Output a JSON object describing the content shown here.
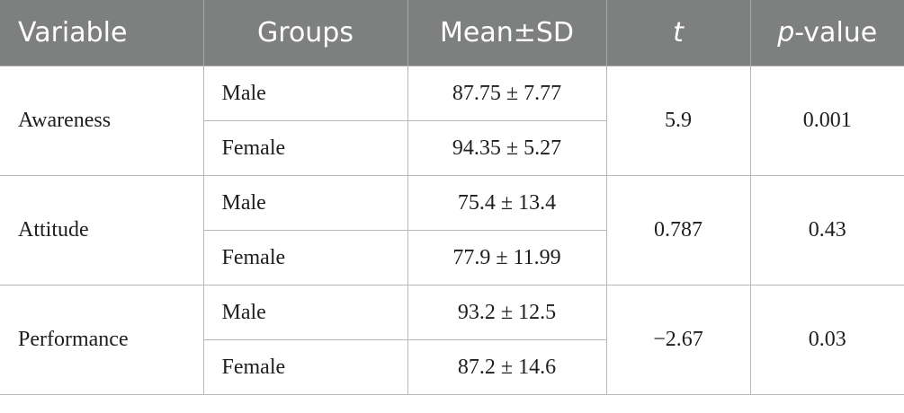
{
  "table": {
    "headers": {
      "variable": "Variable",
      "groups": "Groups",
      "mean_sd": "Mean±SD",
      "t": "t",
      "p_italic": "p",
      "p_suffix": "-value"
    },
    "rows": [
      {
        "variable": "Awareness",
        "t": "5.9",
        "p": "0.001",
        "groups": [
          {
            "group": "Male",
            "mean_sd": "87.75 ± 7.77"
          },
          {
            "group": "Female",
            "mean_sd": "94.35 ± 5.27"
          }
        ]
      },
      {
        "variable": "Attitude",
        "t": "0.787",
        "p": "0.43",
        "groups": [
          {
            "group": "Male",
            "mean_sd": "75.4 ± 13.4"
          },
          {
            "group": "Female",
            "mean_sd": "77.9 ± 11.99"
          }
        ]
      },
      {
        "variable": "Performance",
        "t": "−2.67",
        "p": "0.03",
        "groups": [
          {
            "group": "Male",
            "mean_sd": "93.2 ± 12.5"
          },
          {
            "group": "Female",
            "mean_sd": "87.2 ± 14.6"
          }
        ]
      }
    ]
  }
}
